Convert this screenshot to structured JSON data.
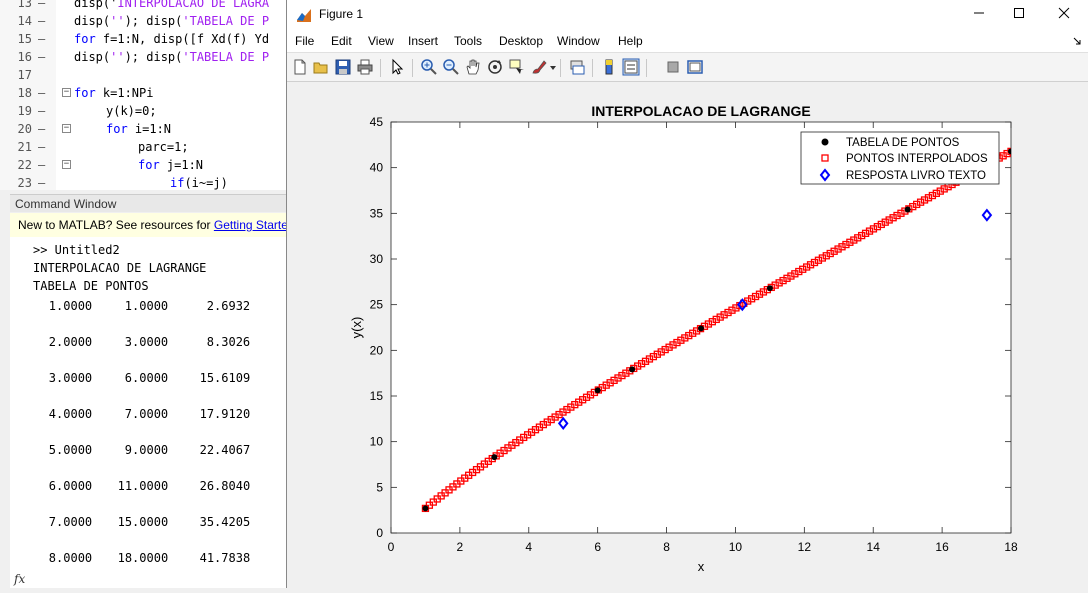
{
  "editor": {
    "lines": [
      {
        "num": "13",
        "dash": "–",
        "parts": [
          {
            "t": "disp('",
            "c": ""
          },
          {
            "t": "INTERPOLACAO DE LAGRA",
            "c": "str"
          }
        ]
      },
      {
        "num": "14",
        "dash": "–",
        "parts": [
          {
            "t": "disp(",
            "c": ""
          },
          {
            "t": "''",
            "c": "str"
          },
          {
            "t": "); disp(",
            "c": ""
          },
          {
            "t": "'TABELA DE P",
            "c": "str"
          }
        ]
      },
      {
        "num": "15",
        "dash": "–",
        "parts": [
          {
            "t": "for",
            "c": "kw"
          },
          {
            "t": " f=1:N, disp([f Xd(f) Yd",
            "c": ""
          }
        ]
      },
      {
        "num": "16",
        "dash": "–",
        "parts": [
          {
            "t": "disp(",
            "c": ""
          },
          {
            "t": "''",
            "c": "str"
          },
          {
            "t": "); disp(",
            "c": ""
          },
          {
            "t": "'TABELA DE P",
            "c": "str"
          }
        ]
      },
      {
        "num": "17",
        "dash": "",
        "parts": []
      },
      {
        "num": "18",
        "dash": "–",
        "fold": "−",
        "parts": [
          {
            "t": "for",
            "c": "kw"
          },
          {
            "t": " k=1:NPi",
            "c": ""
          }
        ]
      },
      {
        "num": "19",
        "dash": "–",
        "parts": [
          {
            "t": "y(k)=0;",
            "c": ""
          }
        ]
      },
      {
        "num": "20",
        "dash": "–",
        "fold": "−",
        "parts": [
          {
            "t": "for",
            "c": "kw"
          },
          {
            "t": " i=1:N",
            "c": ""
          }
        ]
      },
      {
        "num": "21",
        "dash": "–",
        "parts": [
          {
            "t": "parc=1;",
            "c": ""
          }
        ]
      },
      {
        "num": "22",
        "dash": "–",
        "fold": "−",
        "parts": [
          {
            "t": "for",
            "c": "kw"
          },
          {
            "t": " j=1:N",
            "c": ""
          }
        ]
      },
      {
        "num": "23",
        "dash": "–",
        "parts": [
          {
            "t": "if",
            "c": "kw"
          },
          {
            "t": "(i~=j)",
            "c": ""
          }
        ]
      }
    ]
  },
  "command_window": {
    "header": "Command Window",
    "banner_text": "New to MATLAB? See resources for ",
    "banner_link": "Getting Started.",
    "prompt": ">> Untitled2",
    "line1": "INTERPOLACAO DE LAGRANGE",
    "line2": "TABELA DE PONTOS",
    "table": [
      [
        "1.0000",
        "1.0000",
        "2.6932"
      ],
      [
        "2.0000",
        "3.0000",
        "8.3026"
      ],
      [
        "3.0000",
        "6.0000",
        "15.6109"
      ],
      [
        "4.0000",
        "7.0000",
        "17.9120"
      ],
      [
        "5.0000",
        "9.0000",
        "22.4067"
      ],
      [
        "6.0000",
        "11.0000",
        "26.8040"
      ],
      [
        "7.0000",
        "15.0000",
        "35.4205"
      ],
      [
        "8.0000",
        "18.0000",
        "41.7838"
      ]
    ],
    "fx": "fx"
  },
  "figure": {
    "title": "Figure 1",
    "menu": [
      "File",
      "Edit",
      "View",
      "Insert",
      "Tools",
      "Desktop",
      "Window",
      "Help"
    ],
    "toolbar_icons": [
      "new-figure-icon",
      "open-file-icon",
      "save-icon",
      "print-icon",
      "pointer-icon",
      "zoom-in-icon",
      "zoom-out-icon",
      "pan-icon",
      "rotate-icon",
      "data-cursor-icon",
      "brush-icon",
      "link-icon",
      "colorbar-icon",
      "legend-icon",
      "hide-tools-icon",
      "show-tools-icon"
    ]
  },
  "chart_data": {
    "type": "scatter",
    "title": "INTERPOLACAO DE LAGRANGE",
    "xlabel": "x",
    "ylabel": "y(x)",
    "xlim": [
      0,
      18
    ],
    "ylim": [
      0,
      45
    ],
    "xticks": [
      0,
      2,
      4,
      6,
      8,
      10,
      12,
      14,
      16,
      18
    ],
    "yticks": [
      0,
      5,
      10,
      15,
      20,
      25,
      30,
      35,
      40,
      45
    ],
    "legend_position": "top-right",
    "series": [
      {
        "name": "TABELA DE PONTOS",
        "marker": "filled-circle",
        "color": "#000000",
        "x": [
          1,
          3,
          6,
          7,
          9,
          11,
          15,
          18
        ],
        "y": [
          2.6932,
          8.3026,
          15.6109,
          17.912,
          22.4067,
          26.804,
          35.4205,
          41.7838
        ]
      },
      {
        "name": "PONTOS INTERPOLADOS",
        "marker": "square",
        "color": "#ff0000",
        "x_range": [
          1,
          18
        ],
        "count": 150,
        "x": [
          1,
          3,
          6,
          7,
          9,
          11,
          15,
          18
        ],
        "y": [
          2.6932,
          8.3026,
          15.6109,
          17.912,
          22.4067,
          26.804,
          35.4205,
          41.7838
        ]
      },
      {
        "name": "RESPOSTA LIVRO TEXTO",
        "marker": "diamond",
        "color": "#0000ff",
        "x": [
          5,
          10.2,
          17.3
        ],
        "y": [
          12,
          25,
          34.8
        ]
      }
    ]
  }
}
